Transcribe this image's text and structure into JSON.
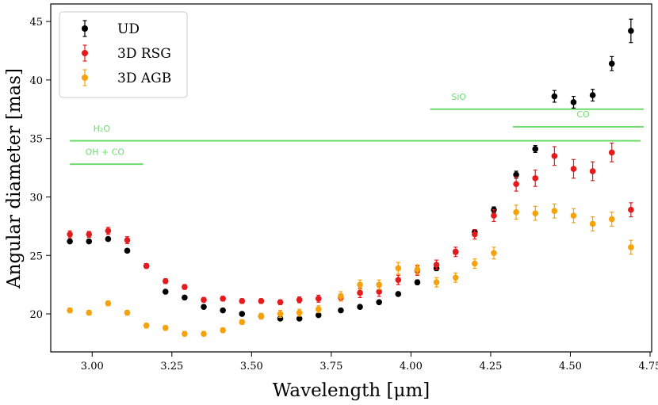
{
  "chart_data": {
    "type": "scatter",
    "xlabel": "Wavelength [μm]",
    "ylabel": "Angular diameter [mas]",
    "xlim": [
      2.87,
      4.755
    ],
    "ylim": [
      16.75,
      46.5
    ],
    "xticks": [
      "3.00",
      "3.25",
      "3.50",
      "3.75",
      "4.00",
      "4.25",
      "4.50",
      "4.75"
    ],
    "xtick_values": [
      3.0,
      3.25,
      3.5,
      3.75,
      4.0,
      4.25,
      4.5,
      4.75
    ],
    "yticks": [
      "20",
      "25",
      "30",
      "35",
      "40",
      "45"
    ],
    "ytick_values": [
      20,
      25,
      30,
      35,
      40,
      45
    ],
    "legend_position": "upper-left",
    "series": [
      {
        "name": "UD",
        "color": "#000000",
        "x": [
          2.93,
          2.99,
          3.05,
          3.11,
          3.17,
          3.23,
          3.29,
          3.35,
          3.41,
          3.47,
          3.53,
          3.59,
          3.65,
          3.71,
          3.78,
          3.84,
          3.9,
          3.96,
          4.02,
          4.08,
          4.14,
          4.2,
          4.26,
          4.33,
          4.39,
          4.45,
          4.51,
          4.57,
          4.63,
          4.69
        ],
        "y": [
          26.2,
          26.2,
          26.4,
          25.4,
          24.1,
          21.9,
          21.4,
          20.6,
          20.3,
          20.0,
          19.8,
          19.6,
          19.6,
          19.9,
          20.3,
          20.6,
          21.0,
          21.7,
          22.7,
          23.9,
          25.3,
          27.0,
          28.9,
          31.9,
          34.1,
          38.6,
          38.1,
          38.7,
          41.4,
          44.2
        ],
        "err": [
          0.15,
          0.15,
          0.15,
          0.15,
          0.15,
          0.15,
          0.15,
          0.15,
          0.15,
          0.15,
          0.15,
          0.15,
          0.15,
          0.15,
          0.15,
          0.15,
          0.15,
          0.15,
          0.2,
          0.2,
          0.2,
          0.2,
          0.25,
          0.3,
          0.3,
          0.5,
          0.5,
          0.5,
          0.6,
          1.0
        ]
      },
      {
        "name": "3D RSG",
        "color": "#e41a1c",
        "x": [
          2.93,
          2.99,
          3.05,
          3.11,
          3.17,
          3.23,
          3.29,
          3.35,
          3.41,
          3.47,
          3.53,
          3.59,
          3.65,
          3.71,
          3.78,
          3.84,
          3.9,
          3.96,
          4.02,
          4.08,
          4.14,
          4.2,
          4.26,
          4.33,
          4.39,
          4.45,
          4.51,
          4.57,
          4.63,
          4.69
        ],
        "y": [
          26.8,
          26.8,
          27.1,
          26.3,
          24.1,
          22.8,
          22.3,
          21.2,
          21.3,
          21.1,
          21.1,
          21.0,
          21.2,
          21.3,
          21.4,
          21.8,
          21.9,
          22.9,
          23.7,
          24.2,
          25.3,
          26.8,
          28.4,
          31.1,
          31.6,
          33.5,
          32.4,
          32.2,
          33.8,
          28.9
        ],
        "err": [
          0.3,
          0.25,
          0.3,
          0.3,
          0.2,
          0.2,
          0.2,
          0.2,
          0.2,
          0.2,
          0.2,
          0.2,
          0.25,
          0.3,
          0.3,
          0.4,
          0.4,
          0.4,
          0.4,
          0.4,
          0.4,
          0.4,
          0.5,
          0.6,
          0.7,
          0.8,
          0.8,
          0.8,
          0.8,
          0.6
        ]
      },
      {
        "name": "3D AGB",
        "color": "#f5a20c",
        "x": [
          2.93,
          2.99,
          3.05,
          3.11,
          3.17,
          3.23,
          3.29,
          3.35,
          3.41,
          3.47,
          3.53,
          3.59,
          3.65,
          3.71,
          3.78,
          3.84,
          3.9,
          3.96,
          4.02,
          4.08,
          4.14,
          4.2,
          4.26,
          4.33,
          4.39,
          4.45,
          4.51,
          4.57,
          4.63,
          4.69
        ],
        "y": [
          20.3,
          20.1,
          20.9,
          20.1,
          19.0,
          18.8,
          18.3,
          18.3,
          18.6,
          19.3,
          19.8,
          20.0,
          20.1,
          20.4,
          21.5,
          22.5,
          22.5,
          23.9,
          23.8,
          22.7,
          23.1,
          24.3,
          25.2,
          28.7,
          28.6,
          28.8,
          28.4,
          27.7,
          28.1,
          25.7
        ],
        "err": [
          0.2,
          0.2,
          0.2,
          0.2,
          0.2,
          0.2,
          0.2,
          0.2,
          0.2,
          0.2,
          0.25,
          0.3,
          0.3,
          0.3,
          0.4,
          0.4,
          0.4,
          0.5,
          0.4,
          0.4,
          0.4,
          0.4,
          0.5,
          0.6,
          0.6,
          0.6,
          0.6,
          0.6,
          0.6,
          0.6
        ]
      }
    ],
    "bands": [
      {
        "label": "SiO",
        "x_start": 4.06,
        "x_end": 4.73,
        "y": 37.5,
        "label_x": 4.15,
        "label_y": 38.3
      },
      {
        "label": "CO",
        "x_start": 4.32,
        "x_end": 4.73,
        "y": 36.0,
        "label_x": 4.54,
        "label_y": 36.8
      },
      {
        "label": "H₂O",
        "x_start": 2.93,
        "x_end": 4.72,
        "y": 34.8,
        "label_x": 3.03,
        "label_y": 35.6
      },
      {
        "label": "OH + CO",
        "x_start": 2.93,
        "x_end": 3.16,
        "y": 32.8,
        "label_x": 3.04,
        "label_y": 33.6
      }
    ],
    "band_color": "#6ddc6d"
  }
}
